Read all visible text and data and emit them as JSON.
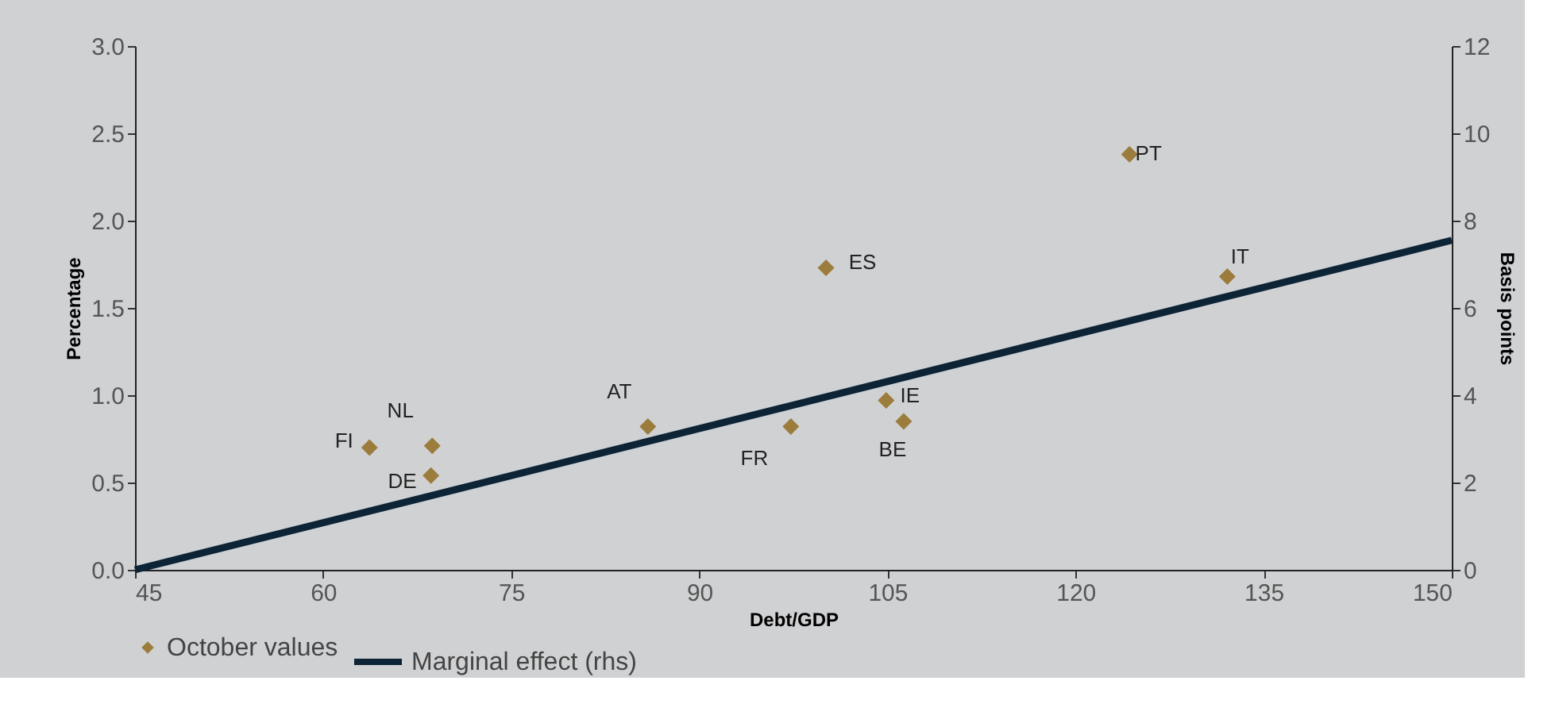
{
  "chart_data": {
    "type": "scatter",
    "xlabel": "Debt/GDP",
    "ylabel": "Percentage",
    "y2label": "Basis points",
    "x": [
      63.7,
      68.7,
      68.6,
      85.9,
      97.3,
      100.1,
      104.9,
      106.3,
      132.1,
      124.3
    ],
    "series": [
      {
        "name": "October values",
        "color": "#9c7c3c",
        "marker": "diamond",
        "values": [
          0.7,
          0.71,
          0.54,
          0.82,
          0.82,
          1.73,
          0.97,
          0.85,
          1.68,
          2.38
        ]
      },
      {
        "name": "Marginal effect (rhs)",
        "color": "#0d2436",
        "type": "line",
        "axis": "y2",
        "x": [
          45,
          150
        ],
        "values": [
          0,
          7.55
        ],
        "line_style": "solid"
      }
    ],
    "annotations": [
      {
        "text": "FI",
        "x": 63.7,
        "y": 0.7
      },
      {
        "text": "NL",
        "x": 68.7,
        "y": 0.71
      },
      {
        "text": "DE",
        "x": 68.6,
        "y": 0.54
      },
      {
        "text": "AT",
        "x": 85.9,
        "y": 0.82
      },
      {
        "text": "FR",
        "x": 97.3,
        "y": 0.82
      },
      {
        "text": "ES",
        "x": 100.1,
        "y": 1.73
      },
      {
        "text": "IE",
        "x": 104.9,
        "y": 0.97
      },
      {
        "text": "BE",
        "x": 106.3,
        "y": 0.85
      },
      {
        "text": "IT",
        "x": 132.1,
        "y": 1.68
      },
      {
        "text": "PT",
        "x": 124.3,
        "y": 2.38
      }
    ],
    "xlim": [
      45,
      150
    ],
    "xticks": [
      45,
      60,
      75,
      90,
      105,
      120,
      135,
      150
    ],
    "ylim": [
      0,
      3.0
    ],
    "yticks": [
      {
        "value": 0,
        "label": "0.0"
      },
      {
        "value": 0.5,
        "label": "0.5"
      },
      {
        "value": 1,
        "label": "1.0"
      },
      {
        "value": 1.5,
        "label": "1.5"
      },
      {
        "value": 2,
        "label": "2.0"
      },
      {
        "value": 2.5,
        "label": "2.5"
      },
      {
        "value": 3,
        "label": "3.0"
      }
    ],
    "y2lim": [
      0,
      12
    ],
    "y2ticks": [
      0,
      2,
      4,
      6,
      8,
      10,
      12
    ],
    "grid": false,
    "legend": "bottom"
  }
}
